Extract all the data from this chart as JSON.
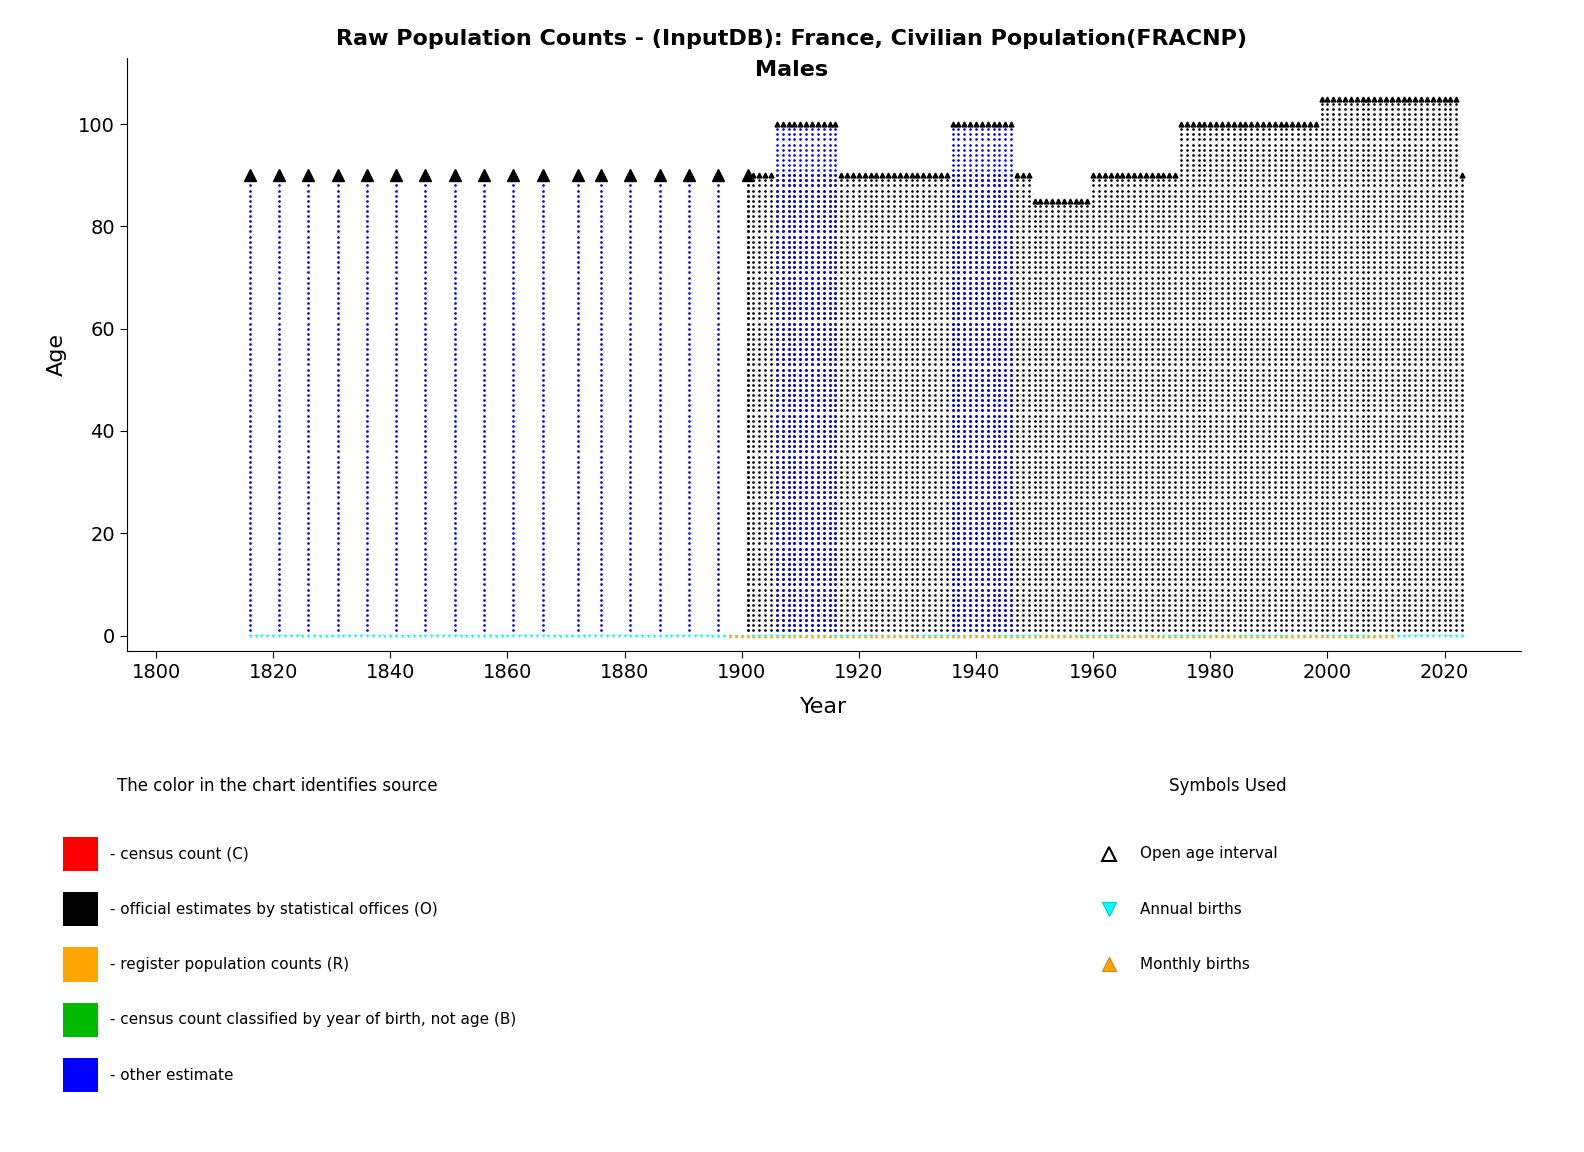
{
  "title_line1": "Raw Population Counts - (InputDB): France, Civilian Population(FRACNP)",
  "title_line2": "Males",
  "xlabel": "Year",
  "ylabel": "Age",
  "xlim": [
    1795,
    2033
  ],
  "ylim": [
    -3,
    113
  ],
  "xticks": [
    1800,
    1820,
    1840,
    1860,
    1880,
    1900,
    1920,
    1940,
    1960,
    1980,
    2000,
    2020
  ],
  "yticks": [
    0,
    20,
    40,
    60,
    80,
    100
  ],
  "bg_color": "#ffffff",
  "blue_sparse_census_years": [
    1816,
    1821,
    1826,
    1831,
    1836,
    1841,
    1846,
    1851,
    1856,
    1861,
    1866,
    1872,
    1876,
    1881,
    1886,
    1891,
    1896,
    1901
  ],
  "blue_color": "#0000ff",
  "black_color": "#000000",
  "cyan_color": "#00ffff",
  "orange_color": "#ffa500",
  "black_annual_start": 1901,
  "black_annual_end": 2023,
  "blue_annual_range1_start": 1906,
  "blue_annual_range1_end": 1916,
  "blue_annual_range2_start": 1936,
  "blue_annual_range2_end": 1946,
  "blue_annual_max_age": 100,
  "cyan_start": 1816,
  "cyan_end": 2023,
  "orange_start": 1898,
  "orange_end": 2011,
  "open_age_by_period": [
    {
      "start": 1816,
      "end": 1901,
      "age": 90
    },
    {
      "start": 1901,
      "end": 1950,
      "age": 90
    },
    {
      "start": 1950,
      "end": 1960,
      "age": 85
    },
    {
      "start": 1960,
      "end": 1975,
      "age": 90
    },
    {
      "start": 1975,
      "end": 1999,
      "age": 100
    },
    {
      "start": 1999,
      "end": 2023,
      "age": 105
    }
  ],
  "blue_open_age": 100,
  "legend_color_title": "The color in the chart identifies source",
  "legend_items": [
    {
      "color": "#ff0000",
      "label": " - census count (C)"
    },
    {
      "color": "#000000",
      "label": " - official estimates by statistical offices (O)"
    },
    {
      "color": "#ffa500",
      "label": " - register population counts (R)"
    },
    {
      "color": "#00bb00",
      "label": " - census count classified by year of birth, not age (B)"
    },
    {
      "color": "#0000ff",
      "label": " - other estimate"
    }
  ],
  "legend_symbols_title": "Symbols Used",
  "legend_symbol_items": [
    {
      "marker": "^",
      "facecolor": "none",
      "edgecolor": "#000000",
      "label": "Open age interval"
    },
    {
      "marker": "v",
      "facecolor": "#00ffff",
      "edgecolor": "#00cccc",
      "label": "Annual births"
    },
    {
      "marker": "^",
      "facecolor": "#ffa500",
      "edgecolor": "#cc8800",
      "label": "Monthly births"
    }
  ]
}
